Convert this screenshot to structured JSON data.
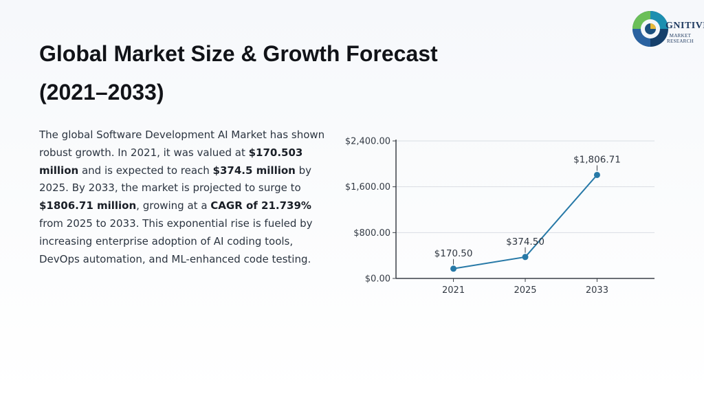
{
  "page": {
    "title_line1": "Global Market Size & Growth Forecast",
    "title_line2": "(2021–2033)"
  },
  "description": {
    "p1": "The global Software Development AI Market has shown robust growth. In 2021, it was valued at ",
    "v2021": "$170.503 million",
    "p2": " and is expected to reach ",
    "v2025": "$374.5 million",
    "p3": " by 2025. By 2033, the market is projected to surge to ",
    "v2033": "$1806.71 million",
    "p4": ", growing at a ",
    "cagr": "CAGR of 21.739%",
    "p5": " from 2025 to 2033. This exponential rise is fueled by increasing enterprise adoption of AI coding tools, DevOps automation, and ML-enhanced code testing."
  },
  "logo": {
    "name": "GNITIVE",
    "line1": "MARKET",
    "line2": "RESEARCH"
  },
  "colors": {
    "series": "#2779a7",
    "grid": "#d9dde3",
    "axis": "#3a3f46"
  },
  "chart_data": {
    "type": "line",
    "categories": [
      "2021",
      "2025",
      "2033"
    ],
    "series": [
      {
        "values": [
          170.5,
          374.5,
          1806.71
        ],
        "data_labels": [
          "$170.50",
          "$374.50",
          "$1,806.71"
        ]
      }
    ],
    "y_ticks": [
      0,
      800,
      1600,
      2400
    ],
    "y_tick_labels": [
      "$0.00",
      "$800.00",
      "$1,600.00",
      "$2,400.00"
    ],
    "ylim": [
      0,
      2400
    ],
    "grid": true
  }
}
